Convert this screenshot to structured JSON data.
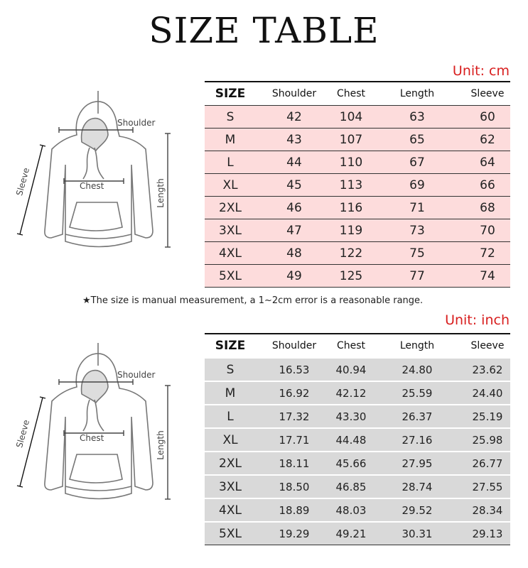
{
  "title": "SIZE TABLE",
  "diagram_labels": {
    "shoulder": "Shoulder",
    "chest": "Chest",
    "length": "Length",
    "sleeve": "Sleeve"
  },
  "note": "★The size is manual measurement, a 1~2cm error is a reasonable range.",
  "columns": [
    "SIZE",
    "Shoulder",
    "Chest",
    "Length",
    "Sleeve"
  ],
  "cm_table": {
    "unit": "Unit: cm",
    "rows": [
      [
        "S",
        "42",
        "104",
        "63",
        "60"
      ],
      [
        "M",
        "43",
        "107",
        "65",
        "62"
      ],
      [
        "L",
        "44",
        "110",
        "67",
        "64"
      ],
      [
        "XL",
        "45",
        "113",
        "69",
        "66"
      ],
      [
        "2XL",
        "46",
        "116",
        "71",
        "68"
      ],
      [
        "3XL",
        "47",
        "119",
        "73",
        "70"
      ],
      [
        "4XL",
        "48",
        "122",
        "75",
        "72"
      ],
      [
        "5XL",
        "49",
        "125",
        "77",
        "74"
      ]
    ]
  },
  "inch_table": {
    "unit": "Unit: inch",
    "rows": [
      [
        "S",
        "16.53",
        "40.94",
        "24.80",
        "23.62"
      ],
      [
        "M",
        "16.92",
        "42.12",
        "25.59",
        "24.40"
      ],
      [
        "L",
        "17.32",
        "43.30",
        "26.37",
        "25.19"
      ],
      [
        "XL",
        "17.71",
        "44.48",
        "27.16",
        "25.98"
      ],
      [
        "2XL",
        "18.11",
        "45.66",
        "27.95",
        "26.77"
      ],
      [
        "3XL",
        "18.50",
        "46.85",
        "28.74",
        "27.55"
      ],
      [
        "4XL",
        "18.89",
        "48.03",
        "29.52",
        "28.34"
      ],
      [
        "5XL",
        "19.29",
        "49.21",
        "30.31",
        "29.13"
      ]
    ]
  },
  "colors": {
    "cm_row": "#fddcdc",
    "inch_row": "#d9d9d9",
    "unit_text": "#d81e1e"
  }
}
